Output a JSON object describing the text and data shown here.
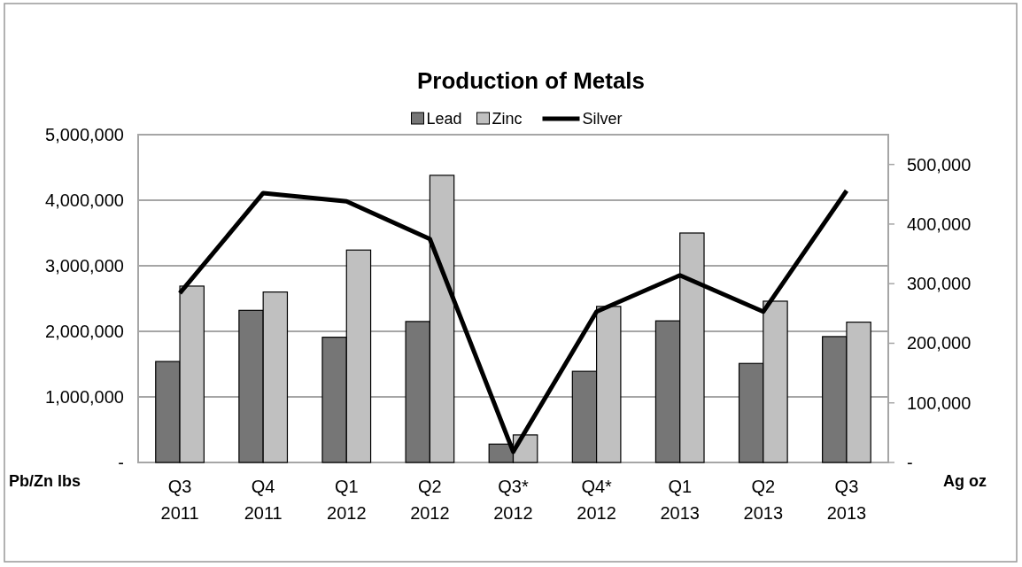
{
  "chart_data": {
    "type": "bar",
    "title": "Production of Metals",
    "ylabel": "Pb/Zn lbs",
    "y2label": "Ag oz",
    "categories": [
      "Q3\n2011",
      "Q4\n2011",
      "Q1\n2012",
      "Q2\n2012",
      "Q3*\n2012",
      "Q4*\n2012",
      "Q1\n2013",
      "Q2\n2013",
      "Q3\n2013"
    ],
    "series": [
      {
        "name": "Lead",
        "color": "#767676",
        "values": [
          1540000,
          2320000,
          1910000,
          2150000,
          280000,
          1390000,
          2160000,
          1510000,
          1920000
        ]
      },
      {
        "name": "Zinc",
        "color": "#c0c0c0",
        "values": [
          2690000,
          2600000,
          3240000,
          4380000,
          420000,
          2380000,
          3500000,
          2460000,
          2140000
        ]
      },
      {
        "name": "Silver",
        "type": "line",
        "axis": "y2",
        "color": "#000000",
        "values": [
          284000,
          452000,
          438000,
          375000,
          18000,
          253000,
          314000,
          253000,
          456000
        ]
      }
    ],
    "ylim": [
      0,
      5000000
    ],
    "yticks": [
      {
        "value": 0,
        "label": "-"
      },
      {
        "value": 1000000,
        "label": "1,000,000"
      },
      {
        "value": 2000000,
        "label": "2,000,000"
      },
      {
        "value": 3000000,
        "label": "3,000,000"
      },
      {
        "value": 4000000,
        "label": "4,000,000"
      },
      {
        "value": 5000000,
        "label": "5,000,000"
      }
    ],
    "y2lim": [
      0,
      550000
    ],
    "y2ticks": [
      {
        "value": 0,
        "label": "-"
      },
      {
        "value": 100000,
        "label": "100,000"
      },
      {
        "value": 200000,
        "label": "200,000"
      },
      {
        "value": 300000,
        "label": "300,000"
      },
      {
        "value": 400000,
        "label": "400,000"
      },
      {
        "value": 500000,
        "label": "500,000"
      }
    ],
    "grid": "y",
    "legend": "top",
    "marker": "none",
    "line_style": "solid"
  }
}
